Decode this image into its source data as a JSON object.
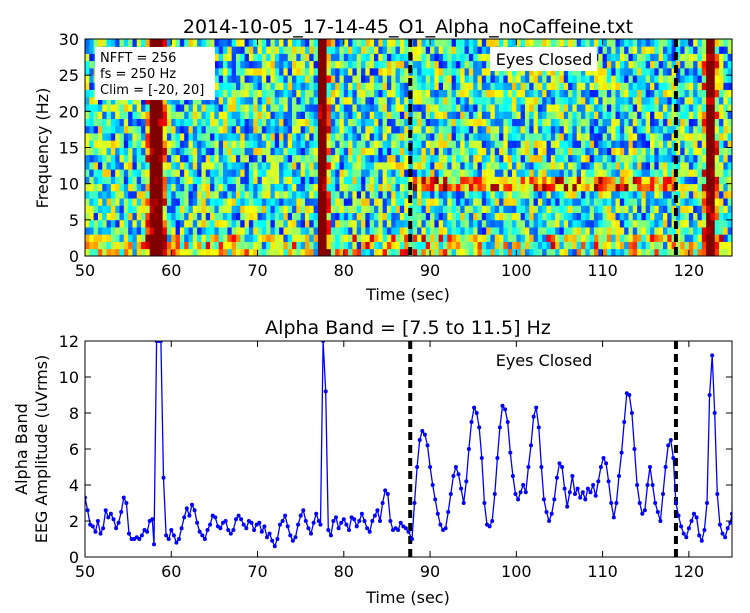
{
  "chart_data": [
    {
      "type": "heatmap",
      "title": "2014-10-05_17-14-45_O1_Alpha_noCaffeine.txt",
      "xlabel": "Time (sec)",
      "ylabel": "Frequency (Hz)",
      "xlim": [
        50,
        125
      ],
      "ylim": [
        0,
        30
      ],
      "xticks": [
        "50",
        "60",
        "70",
        "80",
        "90",
        "100",
        "110",
        "120"
      ],
      "yticks": [
        "0",
        "5",
        "10",
        "15",
        "20",
        "25",
        "30"
      ],
      "colormap": "jet",
      "clim": [
        -20,
        20
      ],
      "info_box": [
        "NFFT = 256",
        "fs = 250 Hz",
        "Clim = [-20, 20]"
      ],
      "annotation": "Eyes Closed",
      "event_lines_x": [
        87.7,
        118.5
      ],
      "features": [
        {
          "kind": "broadband_artifact",
          "x": 58.3,
          "width": 1.3
        },
        {
          "kind": "broadband_artifact",
          "x": 77.6,
          "width": 0.8
        },
        {
          "kind": "broadband_artifact",
          "x": 122.5,
          "width": 1.0
        },
        {
          "kind": "alpha_band",
          "x_range": [
            88,
            118
          ],
          "freq": 10
        }
      ]
    },
    {
      "type": "line",
      "title": "Alpha Band = [7.5 to 11.5] Hz",
      "xlabel": "Time (sec)",
      "ylabel_lines": [
        "Alpha Band",
        "EEG Amplitude (uVrms)"
      ],
      "xlim": [
        50,
        125
      ],
      "ylim": [
        0,
        12
      ],
      "xticks": [
        "50",
        "60",
        "70",
        "80",
        "90",
        "100",
        "110",
        "120"
      ],
      "yticks": [
        "0",
        "2",
        "4",
        "6",
        "8",
        "10",
        "12"
      ],
      "color": "#0000ff",
      "annotation": "Eyes Closed",
      "event_lines_x": [
        87.7,
        118.5
      ],
      "series_points": [
        [
          50.0,
          3.3
        ],
        [
          50.3,
          2.6
        ],
        [
          50.6,
          1.8
        ],
        [
          50.9,
          1.7
        ],
        [
          51.2,
          1.4
        ],
        [
          51.5,
          2.0
        ],
        [
          51.8,
          1.3
        ],
        [
          52.1,
          1.6
        ],
        [
          52.4,
          2.6
        ],
        [
          52.7,
          2.2
        ],
        [
          53.0,
          2.4
        ],
        [
          53.3,
          2.1
        ],
        [
          53.6,
          1.6
        ],
        [
          53.9,
          1.9
        ],
        [
          54.2,
          2.5
        ],
        [
          54.5,
          3.3
        ],
        [
          54.8,
          3.0
        ],
        [
          55.1,
          1.3
        ],
        [
          55.4,
          1.0
        ],
        [
          55.7,
          1.0
        ],
        [
          56.0,
          1.1
        ],
        [
          56.3,
          1.0
        ],
        [
          56.6,
          1.2
        ],
        [
          56.9,
          1.5
        ],
        [
          57.2,
          1.4
        ],
        [
          57.5,
          2.0
        ],
        [
          57.8,
          2.1
        ],
        [
          58.0,
          0.7
        ],
        [
          58.3,
          12.0
        ],
        [
          58.6,
          12.0
        ],
        [
          58.8,
          12.0
        ],
        [
          59.1,
          4.4
        ],
        [
          59.4,
          1.2
        ],
        [
          59.7,
          1.0
        ],
        [
          60.0,
          1.5
        ],
        [
          60.3,
          1.2
        ],
        [
          60.6,
          0.8
        ],
        [
          60.9,
          1.0
        ],
        [
          61.2,
          1.6
        ],
        [
          61.5,
          2.2
        ],
        [
          61.8,
          2.7
        ],
        [
          62.1,
          2.3
        ],
        [
          62.4,
          2.9
        ],
        [
          62.7,
          2.6
        ],
        [
          63.0,
          1.9
        ],
        [
          63.3,
          1.4
        ],
        [
          63.6,
          1.2
        ],
        [
          63.9,
          1.0
        ],
        [
          64.2,
          1.5
        ],
        [
          64.5,
          1.8
        ],
        [
          64.8,
          2.3
        ],
        [
          65.1,
          2.2
        ],
        [
          65.4,
          1.7
        ],
        [
          65.7,
          1.6
        ],
        [
          66.0,
          1.9
        ],
        [
          66.3,
          2.0
        ],
        [
          66.6,
          1.5
        ],
        [
          66.9,
          1.3
        ],
        [
          67.2,
          1.5
        ],
        [
          67.5,
          2.1
        ],
        [
          67.8,
          2.3
        ],
        [
          68.1,
          2.1
        ],
        [
          68.4,
          1.8
        ],
        [
          68.7,
          1.6
        ],
        [
          69.0,
          2.0
        ],
        [
          69.3,
          1.9
        ],
        [
          69.6,
          1.5
        ],
        [
          69.9,
          1.8
        ],
        [
          70.2,
          1.9
        ],
        [
          70.5,
          1.4
        ],
        [
          70.8,
          1.7
        ],
        [
          71.1,
          1.1
        ],
        [
          71.4,
          1.3
        ],
        [
          71.7,
          0.9
        ],
        [
          72.0,
          0.6
        ],
        [
          72.3,
          1.0
        ],
        [
          72.6,
          1.8
        ],
        [
          72.9,
          2.0
        ],
        [
          73.2,
          2.3
        ],
        [
          73.5,
          1.7
        ],
        [
          73.8,
          1.2
        ],
        [
          74.1,
          0.9
        ],
        [
          74.4,
          1.1
        ],
        [
          74.7,
          1.8
        ],
        [
          75.0,
          2.3
        ],
        [
          75.3,
          2.6
        ],
        [
          75.6,
          2.0
        ],
        [
          75.9,
          1.6
        ],
        [
          76.2,
          1.3
        ],
        [
          76.5,
          1.9
        ],
        [
          76.8,
          2.4
        ],
        [
          77.1,
          2.0
        ],
        [
          77.3,
          1.8
        ],
        [
          77.6,
          12.0
        ],
        [
          77.9,
          9.2
        ],
        [
          78.2,
          1.5
        ],
        [
          78.5,
          1.2
        ],
        [
          78.8,
          2.0
        ],
        [
          79.1,
          2.2
        ],
        [
          79.4,
          1.6
        ],
        [
          79.7,
          1.9
        ],
        [
          80.0,
          2.1
        ],
        [
          80.3,
          1.8
        ],
        [
          80.6,
          1.5
        ],
        [
          80.9,
          2.2
        ],
        [
          81.2,
          2.1
        ],
        [
          81.5,
          1.7
        ],
        [
          81.8,
          2.0
        ],
        [
          82.1,
          2.4
        ],
        [
          82.4,
          2.0
        ],
        [
          82.7,
          1.6
        ],
        [
          83.0,
          1.4
        ],
        [
          83.3,
          2.0
        ],
        [
          83.6,
          2.3
        ],
        [
          83.9,
          2.6
        ],
        [
          84.2,
          2.0
        ],
        [
          84.5,
          3.0
        ],
        [
          84.8,
          3.7
        ],
        [
          85.1,
          3.5
        ],
        [
          85.4,
          2.0
        ],
        [
          85.7,
          1.5
        ],
        [
          86.0,
          1.6
        ],
        [
          86.3,
          1.5
        ],
        [
          86.6,
          1.9
        ],
        [
          86.9,
          1.7
        ],
        [
          87.2,
          1.6
        ],
        [
          87.5,
          1.4
        ],
        [
          87.9,
          1.0
        ],
        [
          88.2,
          3.0
        ],
        [
          88.5,
          5.0
        ],
        [
          88.8,
          6.5
        ],
        [
          89.1,
          7.0
        ],
        [
          89.4,
          6.8
        ],
        [
          89.7,
          6.2
        ],
        [
          90.0,
          5.0
        ],
        [
          90.3,
          4.0
        ],
        [
          90.6,
          3.2
        ],
        [
          90.9,
          2.4
        ],
        [
          91.2,
          1.8
        ],
        [
          91.5,
          1.5
        ],
        [
          91.8,
          1.6
        ],
        [
          92.1,
          2.5
        ],
        [
          92.4,
          3.5
        ],
        [
          92.7,
          4.5
        ],
        [
          93.0,
          5.0
        ],
        [
          93.3,
          4.6
        ],
        [
          93.6,
          3.8
        ],
        [
          93.9,
          3.0
        ],
        [
          94.2,
          4.2
        ],
        [
          94.5,
          6.0
        ],
        [
          94.8,
          7.5
        ],
        [
          95.1,
          8.3
        ],
        [
          95.4,
          8.0
        ],
        [
          95.7,
          7.2
        ],
        [
          96.0,
          5.5
        ],
        [
          96.3,
          3.0
        ],
        [
          96.6,
          1.8
        ],
        [
          96.9,
          1.7
        ],
        [
          97.2,
          2.0
        ],
        [
          97.5,
          3.5
        ],
        [
          97.8,
          5.5
        ],
        [
          98.1,
          7.2
        ],
        [
          98.4,
          8.4
        ],
        [
          98.7,
          8.2
        ],
        [
          99.0,
          7.5
        ],
        [
          99.3,
          5.8
        ],
        [
          99.6,
          4.5
        ],
        [
          99.9,
          3.5
        ],
        [
          100.2,
          3.2
        ],
        [
          100.5,
          3.6
        ],
        [
          100.8,
          4.0
        ],
        [
          101.1,
          3.6
        ],
        [
          101.4,
          5.0
        ],
        [
          101.7,
          6.2
        ],
        [
          102.0,
          7.8
        ],
        [
          102.3,
          8.3
        ],
        [
          102.6,
          7.2
        ],
        [
          102.9,
          5.0
        ],
        [
          103.2,
          3.2
        ],
        [
          103.5,
          2.5
        ],
        [
          103.8,
          2.0
        ],
        [
          104.1,
          2.4
        ],
        [
          104.4,
          3.2
        ],
        [
          104.7,
          4.4
        ],
        [
          105.0,
          5.2
        ],
        [
          105.3,
          5.0
        ],
        [
          105.6,
          3.8
        ],
        [
          105.9,
          2.8
        ],
        [
          106.2,
          3.6
        ],
        [
          106.5,
          4.5
        ],
        [
          106.8,
          3.5
        ],
        [
          107.1,
          3.8
        ],
        [
          107.4,
          3.3
        ],
        [
          107.7,
          3.6
        ],
        [
          108.0,
          3.2
        ],
        [
          108.3,
          3.8
        ],
        [
          108.6,
          3.6
        ],
        [
          108.9,
          4.0
        ],
        [
          109.2,
          3.4
        ],
        [
          109.5,
          4.2
        ],
        [
          109.8,
          5.0
        ],
        [
          110.1,
          5.5
        ],
        [
          110.4,
          5.2
        ],
        [
          110.7,
          4.2
        ],
        [
          111.0,
          3.0
        ],
        [
          111.3,
          2.2
        ],
        [
          111.6,
          3.0
        ],
        [
          111.9,
          4.5
        ],
        [
          112.2,
          5.8
        ],
        [
          112.5,
          7.5
        ],
        [
          112.8,
          9.1
        ],
        [
          113.1,
          9.0
        ],
        [
          113.4,
          8.0
        ],
        [
          113.7,
          6.0
        ],
        [
          114.0,
          4.0
        ],
        [
          114.3,
          3.0
        ],
        [
          114.6,
          2.4
        ],
        [
          114.9,
          2.6
        ],
        [
          115.2,
          4.0
        ],
        [
          115.5,
          5.0
        ],
        [
          115.8,
          4.0
        ],
        [
          116.1,
          3.0
        ],
        [
          116.4,
          2.5
        ],
        [
          116.7,
          2.0
        ],
        [
          117.0,
          3.5
        ],
        [
          117.3,
          5.0
        ],
        [
          117.6,
          6.2
        ],
        [
          117.9,
          6.5
        ],
        [
          118.2,
          5.5
        ],
        [
          118.5,
          3.0
        ],
        [
          118.8,
          2.3
        ],
        [
          119.1,
          1.7
        ],
        [
          119.4,
          1.3
        ],
        [
          119.7,
          1.1
        ],
        [
          120.0,
          1.6
        ],
        [
          120.3,
          2.0
        ],
        [
          120.6,
          2.4
        ],
        [
          120.9,
          2.2
        ],
        [
          121.2,
          1.2
        ],
        [
          121.5,
          0.9
        ],
        [
          121.8,
          1.5
        ],
        [
          122.1,
          3.0
        ],
        [
          122.4,
          9.0
        ],
        [
          122.7,
          11.2
        ],
        [
          123.0,
          8.0
        ],
        [
          123.3,
          3.5
        ],
        [
          123.6,
          1.8
        ],
        [
          123.9,
          1.3
        ],
        [
          124.2,
          1.1
        ],
        [
          124.5,
          1.6
        ],
        [
          124.8,
          1.9
        ],
        [
          125.0,
          2.4
        ]
      ]
    }
  ]
}
